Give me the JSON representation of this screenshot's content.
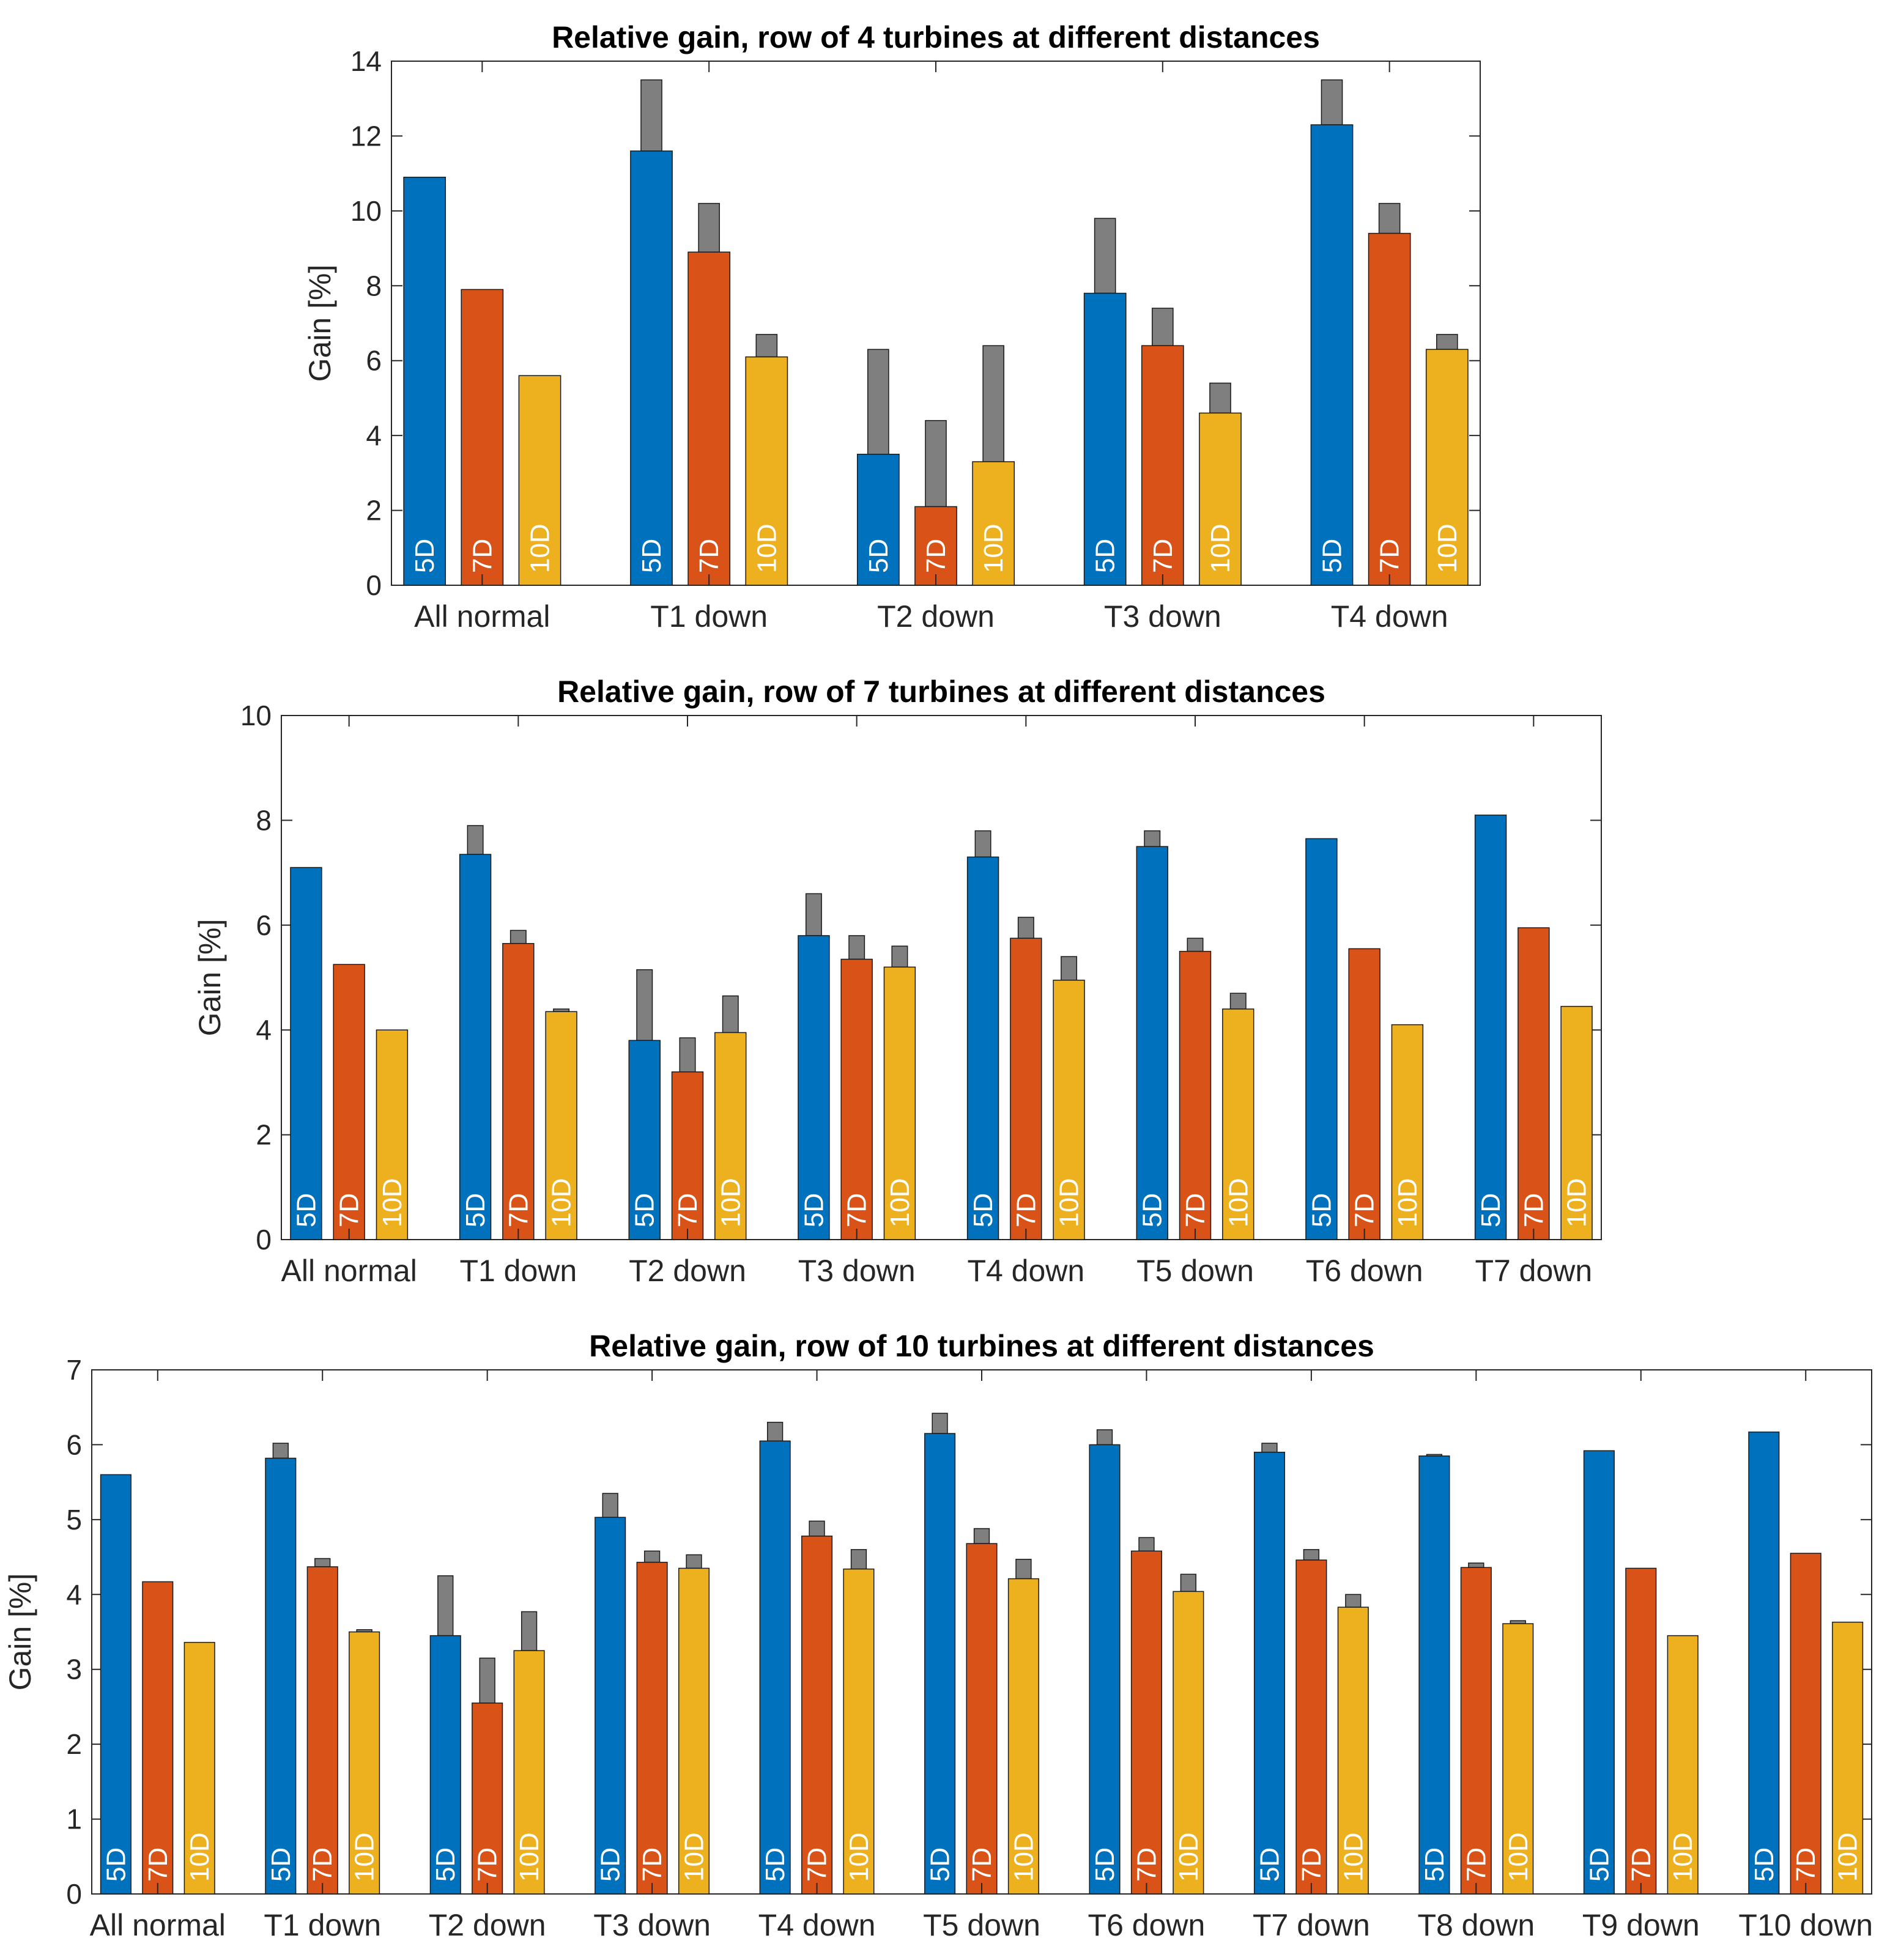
{
  "figure": {
    "colors": {
      "5D": "#0072BD",
      "7D": "#D95319",
      "10D": "#EDB120",
      "extra": "#7f7f7f",
      "axis": "#262626"
    }
  },
  "chart_data": [
    {
      "type": "bar",
      "title": "Relative gain, row of 4 turbines at different distances",
      "xlabel": "",
      "ylabel": "Gain [%]",
      "ylim": [
        0,
        14
      ],
      "yticks": [
        0,
        2,
        4,
        6,
        8,
        10,
        12,
        14
      ],
      "categories": [
        "All normal",
        "T1 down",
        "T2 down",
        "T3 down",
        "T4 down"
      ],
      "series": [
        {
          "name": "5D",
          "values": [
            10.9,
            11.6,
            3.5,
            7.8,
            12.3
          ],
          "upper": [
            10.9,
            13.5,
            6.3,
            9.8,
            13.5
          ]
        },
        {
          "name": "7D",
          "values": [
            7.9,
            8.9,
            2.1,
            6.4,
            9.4
          ],
          "upper": [
            7.9,
            10.2,
            4.4,
            7.4,
            10.2
          ]
        },
        {
          "name": "10D",
          "values": [
            5.6,
            6.1,
            3.3,
            4.6,
            6.3
          ],
          "upper": [
            5.6,
            6.7,
            6.4,
            5.4,
            6.7
          ]
        }
      ]
    },
    {
      "type": "bar",
      "title": "Relative gain, row of 7 turbines at different distances",
      "xlabel": "",
      "ylabel": "Gain [%]",
      "ylim": [
        0,
        10
      ],
      "yticks": [
        0,
        2,
        4,
        6,
        8,
        10
      ],
      "categories": [
        "All normal",
        "T1 down",
        "T2 down",
        "T3 down",
        "T4 down",
        "T5 down",
        "T6 down",
        "T7 down"
      ],
      "series": [
        {
          "name": "5D",
          "values": [
            7.1,
            7.35,
            3.8,
            5.8,
            7.3,
            7.5,
            7.65,
            8.1
          ],
          "upper": [
            7.1,
            7.9,
            5.15,
            6.6,
            7.8,
            7.8,
            7.65,
            8.1
          ]
        },
        {
          "name": "7D",
          "values": [
            5.25,
            5.65,
            3.2,
            5.35,
            5.75,
            5.5,
            5.55,
            5.95
          ],
          "upper": [
            5.25,
            5.9,
            3.85,
            5.8,
            6.15,
            5.75,
            5.55,
            5.95
          ]
        },
        {
          "name": "10D",
          "values": [
            4.0,
            4.35,
            3.95,
            5.2,
            4.95,
            4.4,
            4.1,
            4.45
          ],
          "upper": [
            4.0,
            4.4,
            4.65,
            5.6,
            5.4,
            4.7,
            4.1,
            4.45
          ]
        }
      ]
    },
    {
      "type": "bar",
      "title": "Relative gain, row of 10 turbines at different distances",
      "xlabel": "",
      "ylabel": "Gain [%]",
      "ylim": [
        0,
        7
      ],
      "yticks": [
        0,
        1,
        2,
        3,
        4,
        5,
        6,
        7
      ],
      "categories": [
        "All normal",
        "T1 down",
        "T2 down",
        "T3 down",
        "T4 down",
        "T5 down",
        "T6 down",
        "T7 down",
        "T8 down",
        "T9 down",
        "T10 down"
      ],
      "series": [
        {
          "name": "5D",
          "values": [
            5.6,
            5.82,
            3.45,
            5.03,
            6.05,
            6.15,
            6.0,
            5.9,
            5.85,
            5.92,
            6.17
          ],
          "upper": [
            5.6,
            6.02,
            4.25,
            5.35,
            6.3,
            6.42,
            6.2,
            6.02,
            5.87,
            5.92,
            6.17
          ]
        },
        {
          "name": "7D",
          "values": [
            4.17,
            4.37,
            2.55,
            4.43,
            4.78,
            4.68,
            4.58,
            4.46,
            4.36,
            4.35,
            4.55
          ],
          "upper": [
            4.17,
            4.48,
            3.15,
            4.58,
            4.98,
            4.88,
            4.76,
            4.6,
            4.42,
            4.35,
            4.55
          ]
        },
        {
          "name": "10D",
          "values": [
            3.36,
            3.5,
            3.25,
            4.35,
            4.34,
            4.21,
            4.04,
            3.83,
            3.61,
            3.45,
            3.63
          ],
          "upper": [
            3.36,
            3.53,
            3.77,
            4.53,
            4.6,
            4.47,
            4.27,
            4.0,
            3.65,
            3.45,
            3.63
          ]
        }
      ]
    }
  ]
}
